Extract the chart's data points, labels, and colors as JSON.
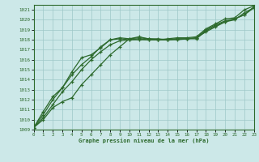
{
  "title": "Graphe pression niveau de la mer (hPa)",
  "hours": [
    0,
    1,
    2,
    3,
    4,
    5,
    6,
    7,
    8,
    9,
    10,
    11,
    12,
    13,
    14,
    15,
    16,
    17,
    18,
    19,
    20,
    21,
    22,
    23
  ],
  "ylim": [
    1009.0,
    1021.5
  ],
  "xlim": [
    0,
    23
  ],
  "yticks": [
    1009,
    1010,
    1011,
    1012,
    1013,
    1014,
    1015,
    1016,
    1017,
    1018,
    1019,
    1020,
    1021
  ],
  "xticks": [
    0,
    1,
    2,
    3,
    4,
    5,
    6,
    7,
    8,
    9,
    10,
    11,
    12,
    13,
    14,
    15,
    16,
    17,
    18,
    19,
    20,
    21,
    22,
    23
  ],
  "bg_color": "#cce8e8",
  "grid_color": "#9dc8c8",
  "line_color": "#2d6a2d",
  "line1": [
    1009.2,
    1010.0,
    1011.2,
    1011.8,
    1012.2,
    1013.5,
    1014.5,
    1015.5,
    1016.5,
    1017.3,
    1018.1,
    1018.3,
    1018.1,
    1018.1,
    1018.0,
    1018.1,
    1018.1,
    1018.2,
    1019.0,
    1019.5,
    1019.9,
    1020.1,
    1020.5,
    1021.3
  ],
  "line2": [
    1009.2,
    1010.2,
    1011.5,
    1012.8,
    1013.8,
    1015.0,
    1016.0,
    1016.8,
    1017.5,
    1017.9,
    1018.0,
    1018.1,
    1018.0,
    1018.0,
    1018.0,
    1018.0,
    1018.1,
    1018.1,
    1018.9,
    1019.4,
    1019.8,
    1020.0,
    1020.7,
    1021.2
  ],
  "line3_bump": [
    1009.2,
    1010.8,
    1012.3,
    1013.2,
    1014.5,
    1015.5,
    1016.3,
    1017.3,
    1018.0,
    1018.2,
    1018.1,
    1018.2,
    1018.1,
    1018.0,
    1018.1,
    1018.2,
    1018.2,
    1018.3,
    1019.1,
    1019.6,
    1020.1,
    1020.2,
    1021.0,
    1021.4
  ],
  "line4_steep": [
    1009.2,
    1010.5,
    1012.0,
    1013.2,
    1014.8,
    1016.2,
    1016.5,
    1017.2,
    1018.0,
    1018.1,
    1018.0,
    1018.0,
    1018.0,
    1018.0,
    1018.0,
    1018.1,
    1018.1,
    1018.2,
    1018.8,
    1019.3,
    1019.8,
    1020.1,
    1020.5,
    1021.2
  ]
}
